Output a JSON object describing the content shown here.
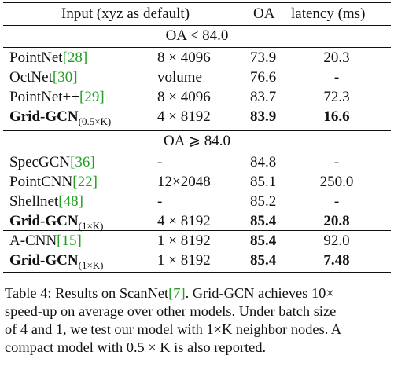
{
  "header": {
    "input": "Input (xyz as default)",
    "oa": "OA",
    "latency": "latency (ms)"
  },
  "section1": {
    "title": "OA < 84.0",
    "rows": [
      {
        "name": "PointNet",
        "cite": "[28]",
        "sub": "",
        "input": "8 × 4096",
        "oa": "73.9",
        "latency": "20.3",
        "bold": false
      },
      {
        "name": "OctNet",
        "cite": "[30]",
        "sub": "",
        "input": "volume",
        "oa": "76.6",
        "latency": "-",
        "bold": false
      },
      {
        "name": "PointNet++",
        "cite": "[29]",
        "sub": "",
        "input": "8 × 4096",
        "oa": "83.7",
        "latency": "72.3",
        "bold": false
      },
      {
        "name": "Grid-GCN",
        "cite": "",
        "sub": "(0.5×K)",
        "input": "4 × 8192",
        "oa": "83.9",
        "latency": "16.6",
        "bold": true
      }
    ]
  },
  "section2": {
    "title": "OA ⩾ 84.0",
    "rows": [
      {
        "name": "SpecGCN",
        "cite": "[36]",
        "sub": "",
        "input": "-",
        "oa": "84.8",
        "latency": "-",
        "bold": false
      },
      {
        "name": "PointCNN",
        "cite": "[22]",
        "sub": "",
        "input": "12×2048",
        "oa": "85.1",
        "latency": "250.0",
        "bold": false
      },
      {
        "name": "Shellnet",
        "cite": "[48]",
        "sub": "",
        "input": "-",
        "oa": "85.2",
        "latency": "-",
        "bold": false
      },
      {
        "name": "Grid-GCN",
        "cite": "",
        "sub": "(1×K)",
        "input": "4 × 8192",
        "oa": "85.4",
        "latency": "20.8",
        "bold": true
      }
    ]
  },
  "section3": {
    "rows": [
      {
        "name": "A-CNN",
        "cite": "[15]",
        "sub": "",
        "input": "1 × 8192",
        "oa": "85.4",
        "latency": "92.0",
        "bold": false,
        "oa_bold": true
      },
      {
        "name": "Grid-GCN",
        "cite": "",
        "sub": "(1×K)",
        "input": "1 × 8192",
        "oa": "85.4",
        "latency": "7.48",
        "bold": true
      }
    ]
  },
  "caption": {
    "lead": "Table 4: Results on ScanNet",
    "cite": "[7]",
    "line1_rest": ". Grid-GCN achieves 10×",
    "line2": "speed-up on average over other models. Under batch size",
    "line3": "of 4 and 1, we test our model with 1×K neighbor nodes. A",
    "line4": "compact model with 0.5 × K is also reported."
  }
}
